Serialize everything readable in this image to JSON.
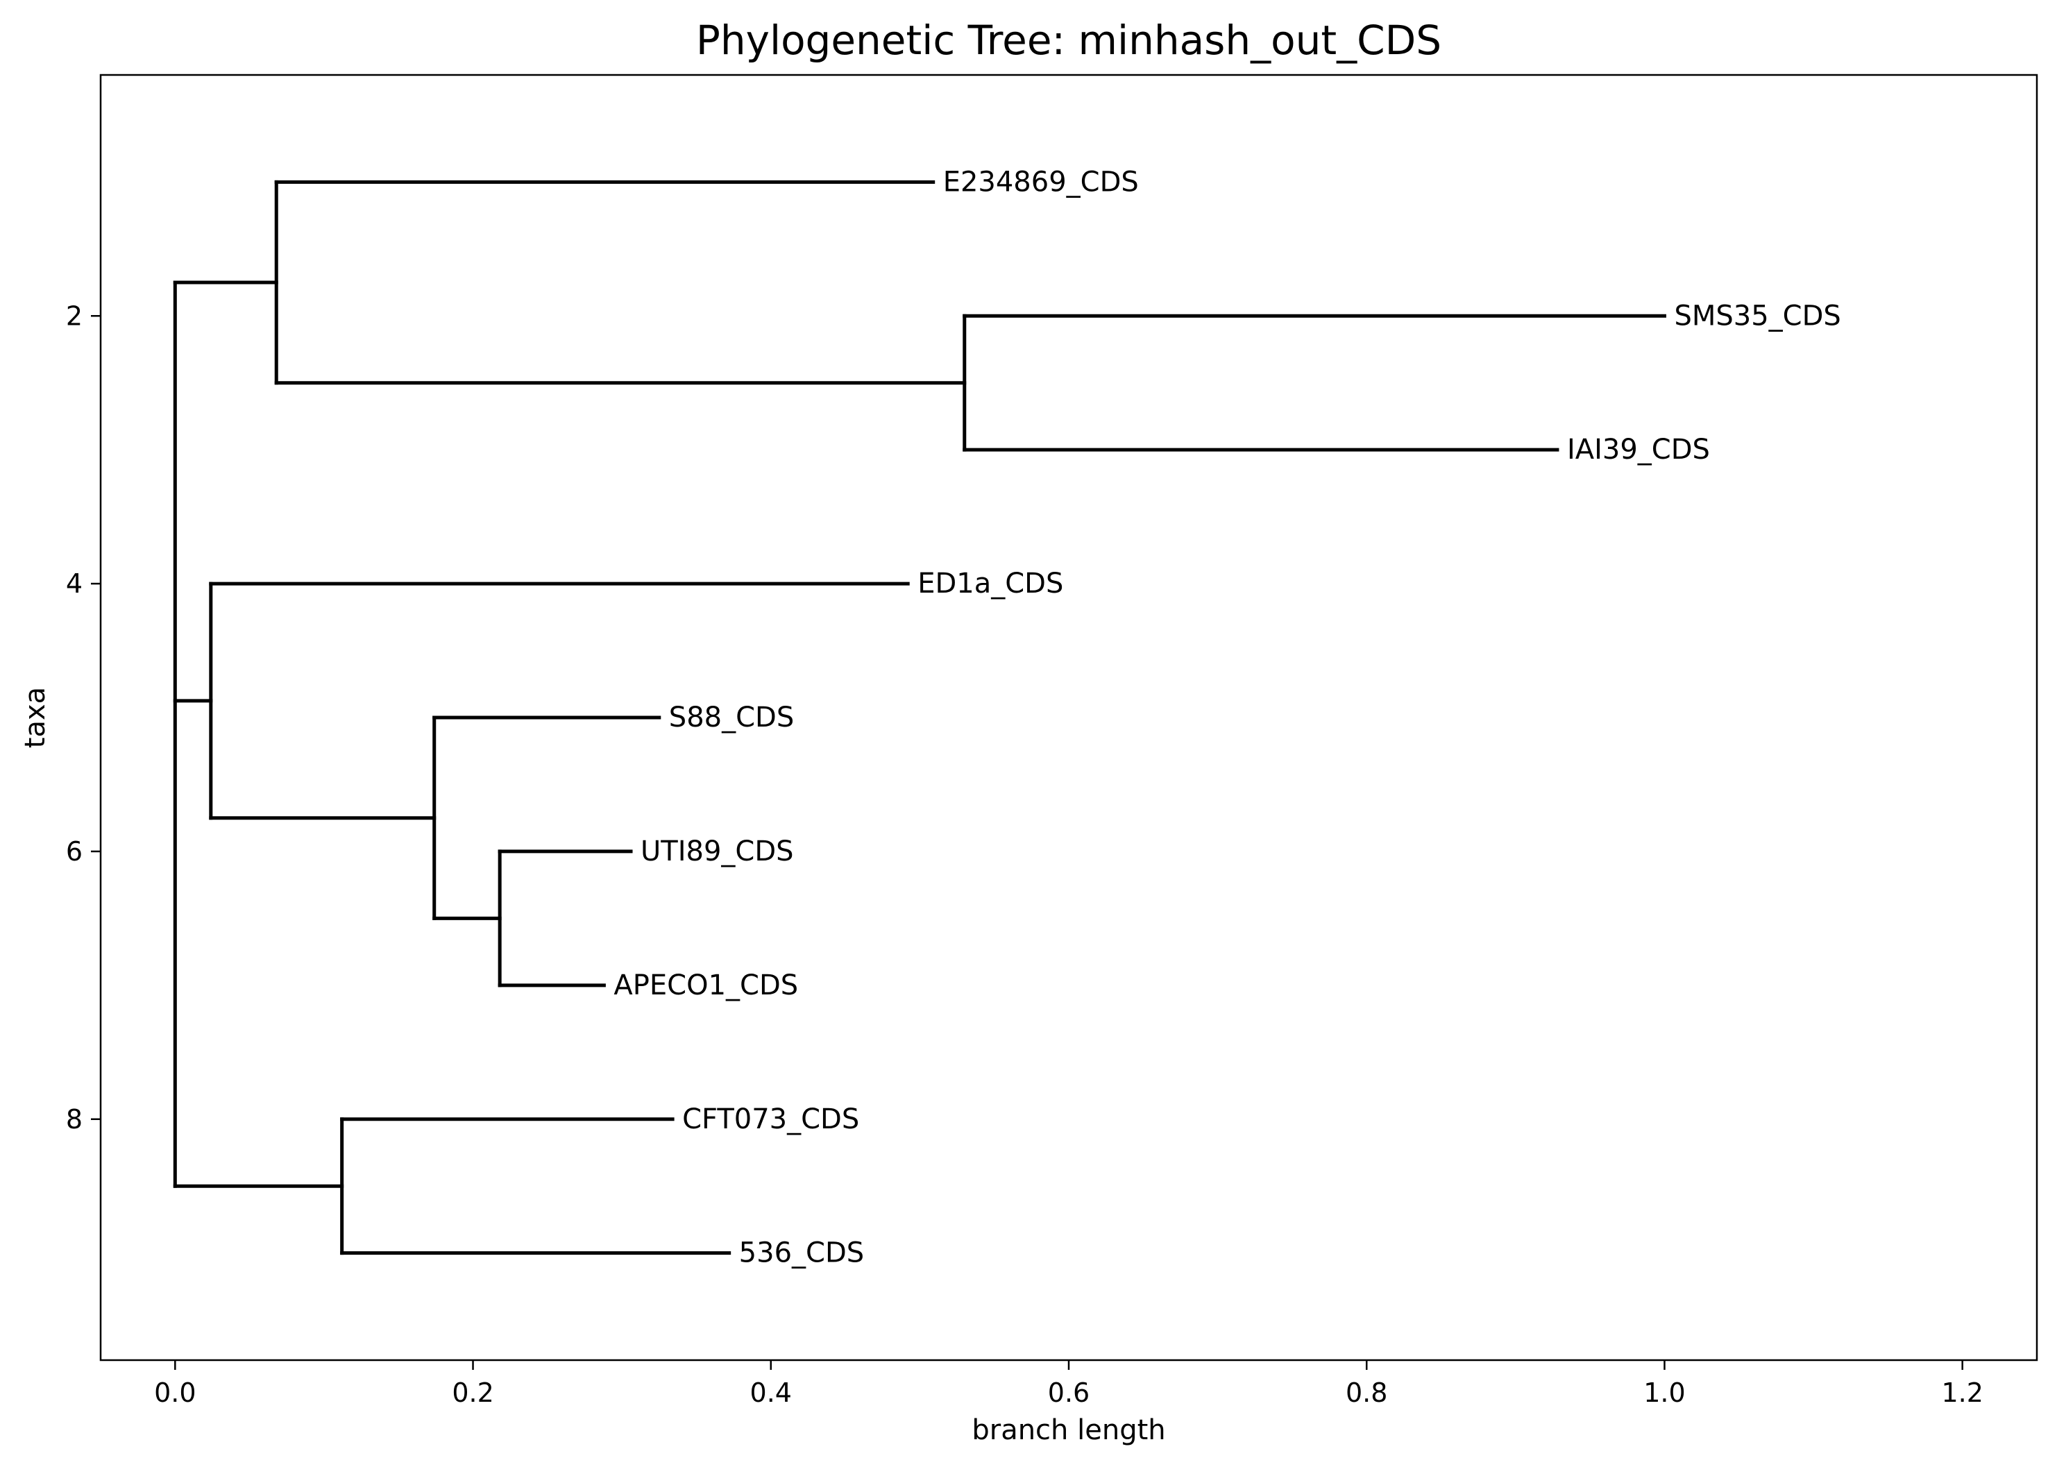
{
  "chart_data": {
    "type": "tree",
    "title": "Phylogenetic Tree: minhash_out_CDS",
    "xlabel": "branch length",
    "ylabel": "taxa",
    "xlim": [
      -0.05,
      1.25
    ],
    "ylim": [
      9.8,
      0.2
    ],
    "xticks": [
      "0.0",
      "0.2",
      "0.4",
      "0.6",
      "0.8",
      "1.0",
      "1.2"
    ],
    "xtick_values": [
      0.0,
      0.2,
      0.4,
      0.6,
      0.8,
      1.0,
      1.2
    ],
    "yticks": [
      "2",
      "4",
      "6",
      "8"
    ],
    "ytick_values": [
      2,
      4,
      6,
      8
    ],
    "grid": false,
    "line_color": "#000000",
    "taxa": [
      {
        "name": "E234869_CDS",
        "x": 0.509,
        "y": 1
      },
      {
        "name": "SMS35_CDS",
        "x": 1.0,
        "y": 2
      },
      {
        "name": "IAI39_CDS",
        "x": 0.928,
        "y": 3
      },
      {
        "name": "ED1a_CDS",
        "x": 0.492,
        "y": 4
      },
      {
        "name": "S88_CDS",
        "x": 0.325,
        "y": 5
      },
      {
        "name": "UTI89_CDS",
        "x": 0.306,
        "y": 6
      },
      {
        "name": "APECO1_CDS",
        "x": 0.288,
        "y": 7
      },
      {
        "name": "CFT073_CDS",
        "x": 0.334,
        "y": 8
      },
      {
        "name": "536_CDS",
        "x": 0.372,
        "y": 9
      }
    ],
    "horizontal_branches": [
      {
        "x0": 0.0,
        "x1": 0.068,
        "y": 1.75
      },
      {
        "x0": 0.068,
        "x1": 0.509,
        "y": 1
      },
      {
        "x0": 0.068,
        "x1": 0.53,
        "y": 2.5
      },
      {
        "x0": 0.53,
        "x1": 1.0,
        "y": 2
      },
      {
        "x0": 0.53,
        "x1": 0.928,
        "y": 3
      },
      {
        "x0": 0.0,
        "x1": 0.024,
        "y": 4.875
      },
      {
        "x0": 0.024,
        "x1": 0.492,
        "y": 4
      },
      {
        "x0": 0.024,
        "x1": 0.174,
        "y": 5.75
      },
      {
        "x0": 0.174,
        "x1": 0.325,
        "y": 5
      },
      {
        "x0": 0.174,
        "x1": 0.218,
        "y": 6.5
      },
      {
        "x0": 0.218,
        "x1": 0.306,
        "y": 6
      },
      {
        "x0": 0.218,
        "x1": 0.288,
        "y": 7
      },
      {
        "x0": 0.0,
        "x1": 0.112,
        "y": 8.5
      },
      {
        "x0": 0.112,
        "x1": 0.334,
        "y": 8
      },
      {
        "x0": 0.112,
        "x1": 0.372,
        "y": 9
      }
    ],
    "vertical_branches": [
      {
        "x": 0.0,
        "y0": 1.75,
        "y1": 8.5
      },
      {
        "x": 0.068,
        "y0": 1,
        "y1": 2.5
      },
      {
        "x": 0.53,
        "y0": 2,
        "y1": 3
      },
      {
        "x": 0.024,
        "y0": 4,
        "y1": 5.75
      },
      {
        "x": 0.174,
        "y0": 5,
        "y1": 6.5
      },
      {
        "x": 0.218,
        "y0": 6,
        "y1": 7
      },
      {
        "x": 0.112,
        "y0": 8,
        "y1": 9
      }
    ]
  }
}
